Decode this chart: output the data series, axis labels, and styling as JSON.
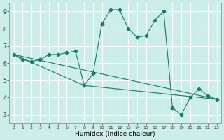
{
  "title": "",
  "xlabel": "Humidex (Indice chaleur)",
  "ylabel": "",
  "background_color": "#cceee8",
  "grid_color": "#ffffff",
  "line_color": "#1a7a6e",
  "xlim": [
    -0.5,
    23.5
  ],
  "ylim": [
    2.5,
    9.5
  ],
  "yticks": [
    3,
    4,
    5,
    6,
    7,
    8,
    9
  ],
  "xtick_labels": [
    "0",
    "1",
    "2",
    "3",
    "4",
    "5",
    "6",
    "7",
    "8",
    "9",
    "10",
    "11",
    "12",
    "13",
    "14",
    "15",
    "16",
    "17",
    "18",
    "19",
    "20",
    "21",
    "22",
    "23"
  ],
  "series1_x": [
    0,
    1,
    2,
    3,
    4,
    5,
    6,
    7,
    8,
    9,
    10,
    11,
    12,
    13,
    14,
    15,
    16,
    17,
    18,
    19,
    20,
    21,
    22,
    23
  ],
  "series1_y": [
    6.5,
    6.2,
    6.1,
    6.2,
    6.5,
    6.5,
    6.6,
    6.7,
    4.7,
    5.4,
    8.3,
    9.1,
    9.1,
    8.0,
    7.5,
    7.6,
    8.5,
    9.0,
    3.4,
    3.0,
    4.0,
    4.5,
    4.1,
    3.9
  ],
  "series2_x": [
    0,
    23
  ],
  "series2_y": [
    6.5,
    3.9
  ],
  "series3_x": [
    0,
    8,
    23
  ],
  "series3_y": [
    6.5,
    4.7,
    3.9
  ],
  "marker": "D",
  "markersize": 2.5,
  "linewidth": 0.8
}
